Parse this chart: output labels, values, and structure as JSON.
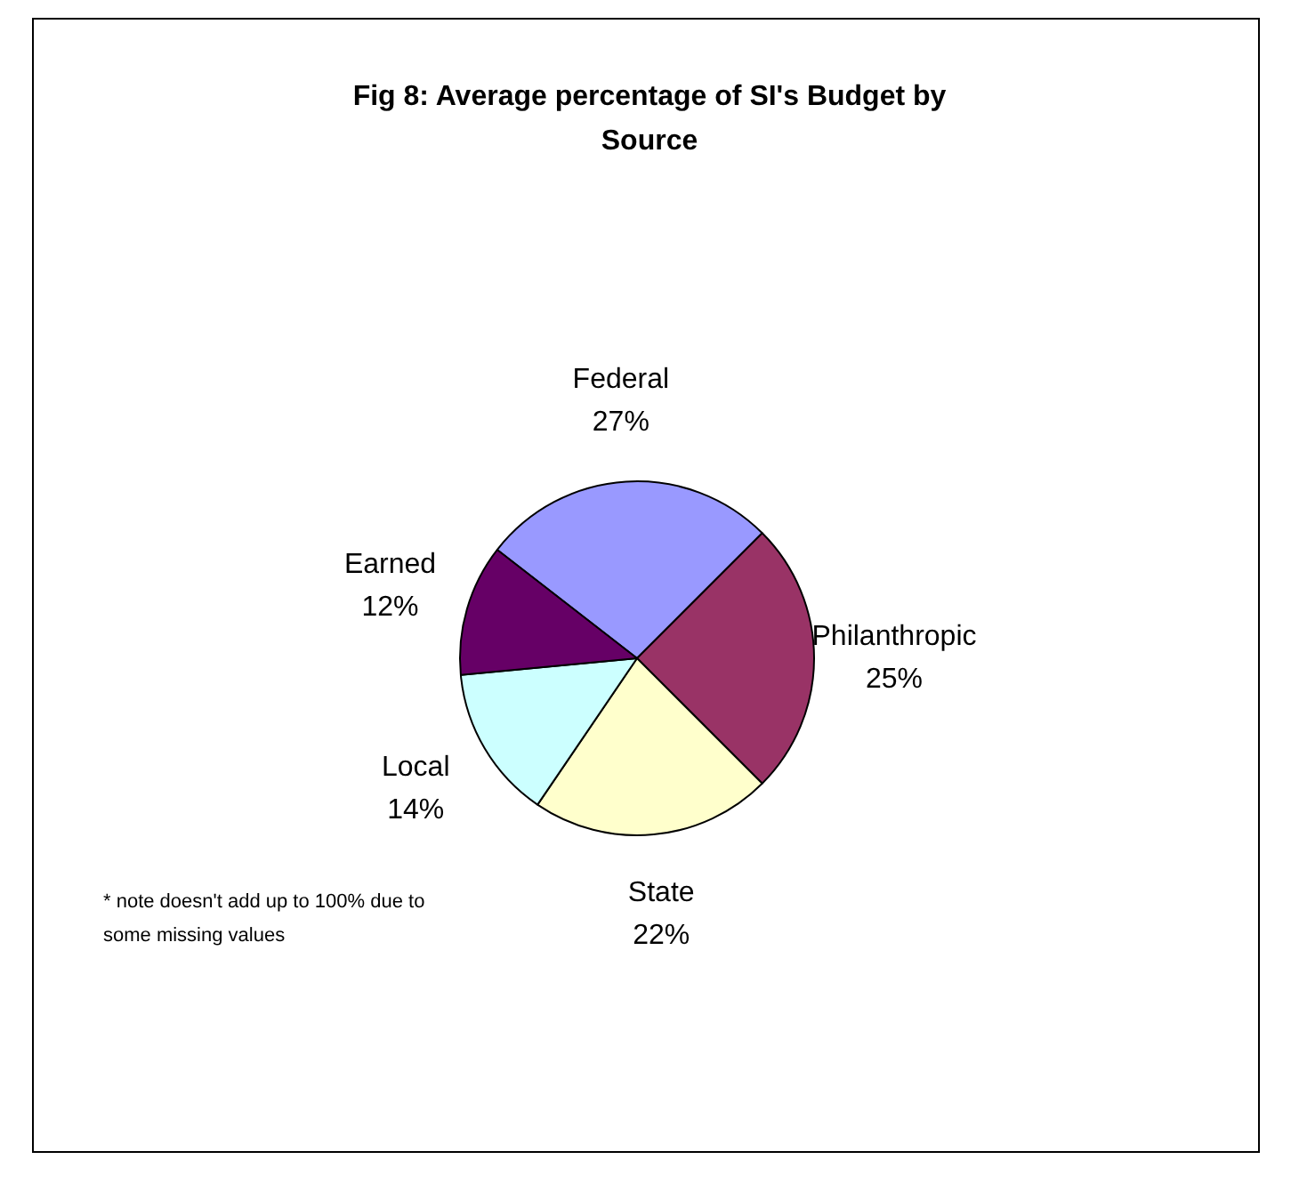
{
  "chart_data": {
    "type": "pie",
    "title": "Fig 8: Average percentage of SI's Budget by Source",
    "categories": [
      "Federal",
      "Philanthropic",
      "State",
      "Local",
      "Earned"
    ],
    "values": [
      27,
      25,
      22,
      14,
      12
    ],
    "colors": [
      "#9999ff",
      "#993366",
      "#ffffcc",
      "#ccffff",
      "#660066"
    ],
    "value_labels": [
      "27%",
      "25%",
      "22%",
      "14%",
      "12%"
    ],
    "legend": false,
    "annotations": [
      "* note doesn't add up to 100% due to some missing values"
    ]
  }
}
